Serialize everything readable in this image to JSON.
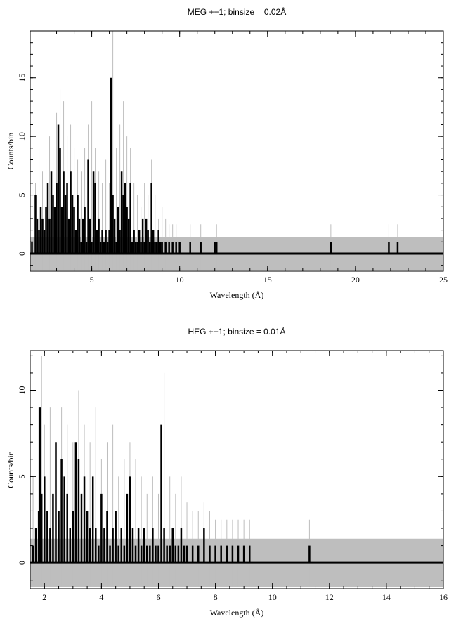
{
  "chart_data": [
    {
      "type": "line",
      "title": "MEG +−1; binsize = 0.02Å",
      "xlabel": "Wavelength (Å)",
      "ylabel": "Counts/bin",
      "xlim": [
        1.5,
        25
      ],
      "ylim": [
        -1.5,
        19
      ],
      "xticks": [
        5,
        10,
        15,
        20,
        25
      ],
      "yticks": [
        0,
        5,
        10,
        15
      ],
      "grid": false,
      "bands": {
        "error_band": [
          -1.4,
          1.4
        ]
      },
      "series": [
        {
          "role": "error-upper",
          "x": [
            1.8,
            2.0,
            2.2,
            2.4,
            2.6,
            2.8,
            3.0,
            3.2,
            3.4,
            3.6,
            3.8,
            4.0,
            4.2,
            4.4,
            4.6,
            4.8,
            5.0,
            5.2,
            5.4,
            5.6,
            5.8,
            6.0,
            6.2,
            6.4,
            6.6,
            6.8,
            7.0,
            7.2,
            7.4,
            7.6,
            7.8,
            8.0,
            8.2,
            8.4,
            8.6,
            8.8,
            9.0,
            9.2,
            9.4,
            9.6,
            9.8,
            10.6,
            11.2,
            12.1,
            18.6,
            21.9,
            22.4
          ],
          "y": [
            6,
            9,
            7,
            8,
            10,
            9,
            12,
            14,
            13,
            10,
            11,
            9,
            8,
            7,
            9,
            11,
            13,
            9,
            7,
            6,
            8,
            6,
            19,
            9,
            11,
            13,
            10,
            9,
            6,
            5,
            4,
            6,
            5,
            8,
            5,
            3,
            4,
            3,
            2.5,
            2.5,
            2.5,
            2.5,
            2.5,
            2.5,
            2.5,
            2.5,
            2.5
          ]
        },
        {
          "role": "counts",
          "x": [
            1.6,
            1.8,
            1.9,
            2.0,
            2.1,
            2.2,
            2.3,
            2.4,
            2.5,
            2.6,
            2.7,
            2.8,
            2.9,
            3.0,
            3.1,
            3.2,
            3.3,
            3.4,
            3.5,
            3.6,
            3.7,
            3.8,
            3.9,
            4.0,
            4.1,
            4.2,
            4.3,
            4.4,
            4.5,
            4.6,
            4.7,
            4.8,
            4.9,
            5.0,
            5.1,
            5.2,
            5.3,
            5.4,
            5.5,
            5.6,
            5.7,
            5.8,
            5.9,
            6.0,
            6.1,
            6.2,
            6.3,
            6.4,
            6.5,
            6.6,
            6.7,
            6.8,
            6.9,
            7.0,
            7.1,
            7.2,
            7.3,
            7.4,
            7.5,
            7.6,
            7.7,
            7.8,
            7.9,
            8.0,
            8.1,
            8.2,
            8.3,
            8.4,
            8.5,
            8.6,
            8.7,
            8.8,
            8.9,
            9.0,
            9.2,
            9.4,
            9.6,
            9.8,
            10.0,
            10.6,
            11.2,
            12.0,
            12.1,
            18.6,
            21.9,
            22.4
          ],
          "y": [
            1,
            5,
            3,
            2,
            4,
            3,
            2,
            4,
            6,
            3,
            7,
            5,
            4,
            6,
            11,
            9,
            4,
            7,
            5,
            6,
            3,
            7,
            5,
            4,
            2,
            5,
            3,
            1,
            3,
            4,
            1,
            8,
            3,
            1,
            7,
            6,
            2,
            3,
            1,
            2,
            1,
            2,
            1,
            2,
            15,
            5,
            3,
            1,
            4,
            2,
            7,
            5,
            6,
            4,
            3,
            6,
            1,
            2,
            1,
            1,
            2,
            1,
            3,
            1,
            3,
            2,
            1,
            6,
            2,
            1,
            1,
            2,
            1,
            1,
            1,
            1,
            1,
            1,
            1,
            1,
            1,
            1,
            1,
            1,
            1,
            1
          ]
        }
      ]
    },
    {
      "type": "line",
      "title": "HEG +−1; binsize = 0.01Å",
      "xlabel": "Wavelength (Å)",
      "ylabel": "Counts/bin",
      "xlim": [
        1.5,
        16
      ],
      "ylim": [
        -1.5,
        12.3
      ],
      "xticks": [
        2,
        4,
        6,
        8,
        10,
        12,
        14,
        16
      ],
      "yticks": [
        0,
        5,
        10
      ],
      "grid": false,
      "bands": {
        "error_band": [
          -1.4,
          1.4
        ]
      },
      "series": [
        {
          "role": "error-upper",
          "x": [
            1.6,
            1.8,
            1.9,
            2.0,
            2.2,
            2.4,
            2.6,
            2.8,
            3.0,
            3.2,
            3.4,
            3.6,
            3.8,
            4.0,
            4.2,
            4.4,
            4.6,
            4.8,
            5.0,
            5.2,
            5.4,
            5.6,
            5.8,
            6.0,
            6.2,
            6.4,
            6.6,
            6.8,
            7.0,
            7.2,
            7.4,
            7.6,
            7.8,
            8.0,
            8.2,
            8.4,
            8.6,
            8.8,
            9.0,
            9.2,
            11.3
          ],
          "y": [
            5,
            9,
            12,
            8,
            9,
            11,
            9,
            8,
            7,
            10,
            8,
            7,
            9,
            6,
            7,
            8,
            5,
            6,
            7,
            6,
            5,
            4,
            5,
            4,
            11,
            5,
            4,
            5,
            3.5,
            3,
            3,
            3.5,
            3,
            2.5,
            2.5,
            2.5,
            2.5,
            2.5,
            2.5,
            2.5,
            2.5
          ]
        },
        {
          "role": "counts",
          "x": [
            1.6,
            1.7,
            1.8,
            1.85,
            1.9,
            2.0,
            2.1,
            2.2,
            2.3,
            2.4,
            2.5,
            2.6,
            2.7,
            2.8,
            2.9,
            3.0,
            3.1,
            3.2,
            3.3,
            3.4,
            3.5,
            3.6,
            3.7,
            3.8,
            3.9,
            4.0,
            4.1,
            4.2,
            4.3,
            4.4,
            4.5,
            4.6,
            4.7,
            4.8,
            4.9,
            5.0,
            5.1,
            5.2,
            5.3,
            5.4,
            5.5,
            5.6,
            5.7,
            5.8,
            5.9,
            6.0,
            6.1,
            6.2,
            6.3,
            6.4,
            6.5,
            6.6,
            6.7,
            6.8,
            6.9,
            7.0,
            7.2,
            7.4,
            7.6,
            7.8,
            8.0,
            8.2,
            8.4,
            8.6,
            8.8,
            9.0,
            9.2,
            11.3
          ],
          "y": [
            1,
            2,
            3,
            9,
            4,
            5,
            3,
            2,
            4,
            7,
            3,
            6,
            5,
            4,
            2,
            3,
            7,
            6,
            4,
            5,
            3,
            2,
            5,
            2,
            1,
            4,
            2,
            3,
            1,
            2,
            3,
            1,
            2,
            1,
            4,
            5,
            2,
            1,
            2,
            1,
            2,
            1,
            1,
            2,
            1,
            1,
            8,
            2,
            1,
            1,
            2,
            1,
            1,
            2,
            1,
            1,
            1,
            1,
            2,
            1,
            1,
            1,
            1,
            1,
            1,
            1,
            1,
            1
          ]
        }
      ]
    }
  ]
}
